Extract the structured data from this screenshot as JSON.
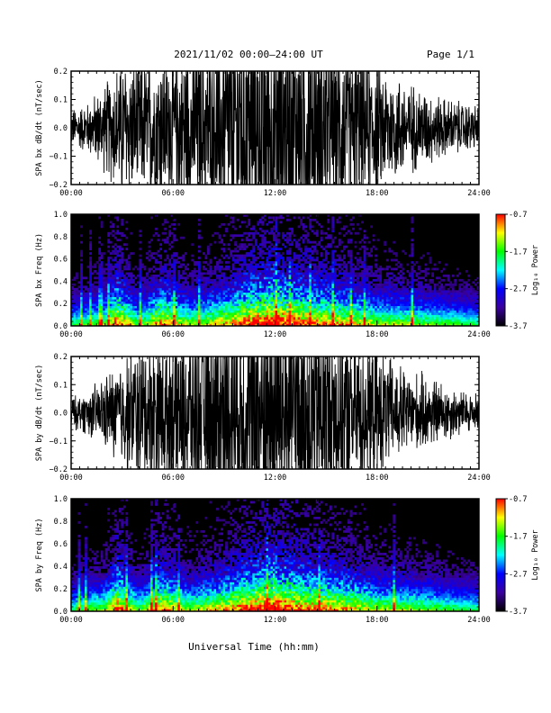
{
  "header": {
    "date_range": "2021/11/02  00:00–24:00 UT",
    "page": "Page 1/1"
  },
  "x_axis": {
    "label": "Universal Time (hh:mm)",
    "ticks": [
      "00:00",
      "06:00",
      "12:00",
      "18:00",
      "24:00"
    ],
    "range_hours": [
      0,
      24
    ]
  },
  "colorbar": {
    "label": "Log₁₀ Power",
    "ticks": [
      "-0.7",
      "-1.7",
      "-2.7",
      "-3.7"
    ],
    "range": [
      -3.7,
      -0.7
    ],
    "colors": [
      "#000000",
      "#3a00a0",
      "#0000ff",
      "#00ffff",
      "#00ff00",
      "#ffff00",
      "#ff0000"
    ]
  },
  "chart_data": [
    {
      "type": "line",
      "ylabel": "SPA bx dB/dt (nT/sec)",
      "ylim": [
        -0.2,
        0.2
      ],
      "y_ticks": [
        "0.2",
        "0.1",
        "0.0",
        "−0.1",
        "−0.2"
      ],
      "y_values": [
        0.2,
        0.1,
        0.0,
        -0.1,
        -0.2
      ],
      "xlim_hours": [
        0,
        24
      ],
      "envelope_hours": [
        0,
        1,
        2,
        3,
        4,
        5,
        6,
        7,
        8,
        9,
        10,
        11,
        12,
        13,
        14,
        15,
        16,
        17,
        18,
        19,
        20,
        21,
        22,
        23,
        24
      ],
      "envelope_amplitude": [
        0.05,
        0.07,
        0.12,
        0.2,
        0.18,
        0.22,
        0.22,
        0.25,
        0.25,
        0.3,
        0.35,
        0.4,
        0.4,
        0.35,
        0.3,
        0.3,
        0.25,
        0.22,
        0.18,
        0.15,
        0.12,
        0.1,
        0.08,
        0.07,
        0.06
      ]
    },
    {
      "type": "heatmap",
      "ylabel": "SPA bx Freq (Hz)",
      "ylim": [
        0.0,
        1.0
      ],
      "y_ticks": [
        "1.0",
        "0.8",
        "0.6",
        "0.4",
        "0.2",
        "0.0"
      ],
      "y_values": [
        1.0,
        0.8,
        0.6,
        0.4,
        0.2,
        0.0
      ],
      "xlim_hours": [
        0,
        24
      ],
      "activity_hours": [
        0,
        2,
        2.7,
        4,
        5.3,
        7,
        9,
        10.5,
        12,
        13,
        14.9,
        16.5,
        18,
        20,
        22,
        24
      ],
      "activity_level": [
        0.3,
        0.5,
        0.9,
        0.4,
        0.8,
        0.5,
        0.7,
        0.9,
        1.0,
        0.9,
        0.8,
        0.7,
        0.55,
        0.5,
        0.4,
        0.3
      ]
    },
    {
      "type": "line",
      "ylabel": "SPA by dB/dt (nT/sec)",
      "ylim": [
        -0.2,
        0.2
      ],
      "y_ticks": [
        "0.2",
        "0.1",
        "0.0",
        "−0.1",
        "−0.2"
      ],
      "y_values": [
        0.2,
        0.1,
        0.0,
        -0.1,
        -0.2
      ],
      "xlim_hours": [
        0,
        24
      ],
      "envelope_hours": [
        0,
        1,
        2,
        3,
        4,
        5,
        6,
        7,
        8,
        9,
        10,
        11,
        12,
        13,
        14,
        15,
        16,
        17,
        18,
        19,
        20,
        21,
        22,
        23,
        24
      ],
      "envelope_amplitude": [
        0.04,
        0.06,
        0.1,
        0.15,
        0.2,
        0.22,
        0.24,
        0.25,
        0.27,
        0.3,
        0.35,
        0.4,
        0.4,
        0.36,
        0.32,
        0.3,
        0.26,
        0.22,
        0.18,
        0.14,
        0.11,
        0.1,
        0.08,
        0.06,
        0.05
      ]
    },
    {
      "type": "heatmap",
      "ylabel": "SPA by Freq (Hz)",
      "ylim": [
        0.0,
        1.0
      ],
      "y_ticks": [
        "1.0",
        "0.8",
        "0.6",
        "0.4",
        "0.2",
        "0.0"
      ],
      "y_values": [
        1.0,
        0.8,
        0.6,
        0.4,
        0.2,
        0.0
      ],
      "xlim_hours": [
        0,
        24
      ],
      "activity_hours": [
        0,
        2,
        2.7,
        4,
        5.3,
        7,
        9,
        10.5,
        12,
        13,
        14.9,
        16.5,
        18,
        20,
        22,
        24
      ],
      "activity_level": [
        0.3,
        0.5,
        0.9,
        0.4,
        0.8,
        0.5,
        0.7,
        0.9,
        1.0,
        0.9,
        0.8,
        0.7,
        0.55,
        0.5,
        0.4,
        0.3
      ]
    }
  ]
}
